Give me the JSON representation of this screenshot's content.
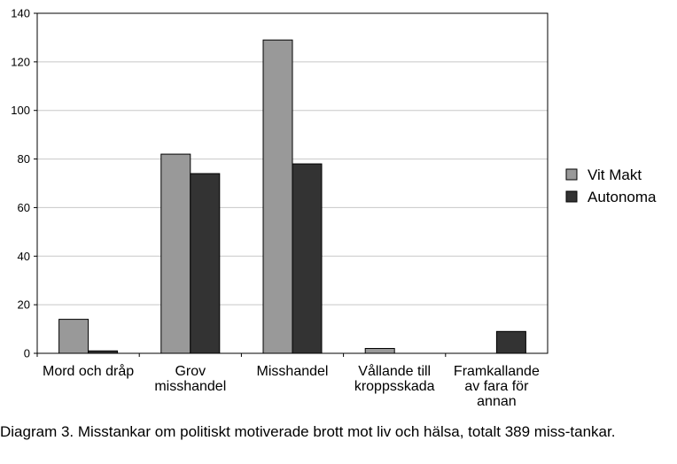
{
  "chart_data": {
    "type": "bar",
    "categories": [
      [
        "Mord och dråp"
      ],
      [
        "Grov",
        "misshandel"
      ],
      [
        "Misshandel"
      ],
      [
        "Vållande till",
        "kroppsskada"
      ],
      [
        "Framkallande",
        "av fara för",
        "annan"
      ]
    ],
    "series": [
      {
        "name": "Vit Makt",
        "values": [
          14,
          82,
          129,
          2,
          0
        ],
        "color": "#999999"
      },
      {
        "name": "Autonoma",
        "values": [
          1,
          74,
          78,
          0,
          9
        ],
        "color": "#333333"
      }
    ],
    "ylim": [
      0,
      140
    ],
    "yticks": [
      0,
      20,
      40,
      60,
      80,
      100,
      120,
      140
    ],
    "grid": true,
    "legend": "right"
  },
  "caption": "Diagram 3. Misstankar om politiskt motiverade brott mot liv och hälsa, totalt 389 miss-tankar."
}
